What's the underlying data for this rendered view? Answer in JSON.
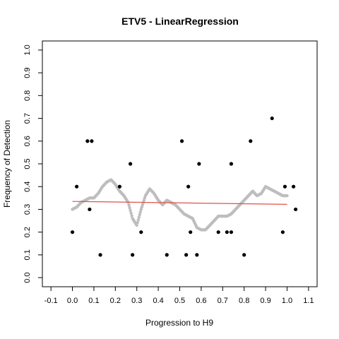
{
  "chart_data": {
    "type": "scatter",
    "title": "ETV5 - LinearRegression",
    "xlabel": "Progression to H9",
    "ylabel": "Frequency of Detection",
    "xlim": [
      -0.14,
      1.14
    ],
    "ylim": [
      -0.04,
      1.04
    ],
    "x_ticks": [
      -0.1,
      0.0,
      0.1,
      0.2,
      0.3,
      0.4,
      0.5,
      0.6,
      0.7,
      0.8,
      0.9,
      1.0,
      1.1
    ],
    "x_tick_labels": [
      "-0.1",
      "0.0",
      "0.1",
      "0.2",
      "0.3",
      "0.4",
      "0.5",
      "0.6",
      "0.7",
      "0.8",
      "0.9",
      "1.0",
      "1.1"
    ],
    "y_ticks": [
      0.0,
      0.1,
      0.2,
      0.3,
      0.4,
      0.5,
      0.6,
      0.7,
      0.8,
      0.9,
      1.0
    ],
    "y_tick_labels": [
      "0.0",
      "0.1",
      "0.2",
      "0.3",
      "0.4",
      "0.5",
      "0.6",
      "0.7",
      "0.8",
      "0.9",
      "1.0"
    ],
    "grid": false,
    "legend": "none",
    "colors": {
      "points": "#000000",
      "smooth": "#bebebe",
      "regression": "#e0524a"
    },
    "series": [
      {
        "kind": "points",
        "x": [
          0.0,
          0.02,
          0.07,
          0.08,
          0.09,
          0.13,
          0.22,
          0.27,
          0.28,
          0.32,
          0.44,
          0.51,
          0.53,
          0.54,
          0.55,
          0.58,
          0.59,
          0.68,
          0.72,
          0.74,
          0.74,
          0.8,
          0.83,
          0.93,
          0.98,
          0.99,
          1.03,
          1.04
        ],
        "y": [
          0.2,
          0.4,
          0.6,
          0.3,
          0.6,
          0.1,
          0.4,
          0.5,
          0.1,
          0.2,
          0.1,
          0.6,
          0.1,
          0.4,
          0.2,
          0.1,
          0.5,
          0.2,
          0.2,
          0.5,
          0.2,
          0.1,
          0.6,
          0.7,
          0.2,
          0.4,
          0.4,
          0.3
        ]
      },
      {
        "kind": "smooth",
        "x": [
          0.0,
          0.02,
          0.04,
          0.06,
          0.08,
          0.1,
          0.12,
          0.14,
          0.16,
          0.18,
          0.2,
          0.22,
          0.24,
          0.26,
          0.28,
          0.3,
          0.32,
          0.34,
          0.36,
          0.38,
          0.4,
          0.42,
          0.44,
          0.46,
          0.48,
          0.5,
          0.52,
          0.54,
          0.56,
          0.58,
          0.6,
          0.62,
          0.64,
          0.66,
          0.68,
          0.7,
          0.72,
          0.74,
          0.76,
          0.78,
          0.8,
          0.82,
          0.84,
          0.86,
          0.88,
          0.9,
          0.92,
          0.94,
          0.96,
          0.98,
          1.0
        ],
        "y": [
          0.3,
          0.31,
          0.33,
          0.34,
          0.35,
          0.35,
          0.37,
          0.4,
          0.42,
          0.43,
          0.41,
          0.38,
          0.36,
          0.33,
          0.26,
          0.23,
          0.3,
          0.36,
          0.39,
          0.37,
          0.34,
          0.32,
          0.34,
          0.33,
          0.32,
          0.3,
          0.28,
          0.27,
          0.26,
          0.22,
          0.21,
          0.21,
          0.23,
          0.25,
          0.27,
          0.27,
          0.27,
          0.28,
          0.3,
          0.32,
          0.34,
          0.36,
          0.38,
          0.36,
          0.37,
          0.4,
          0.39,
          0.38,
          0.37,
          0.36,
          0.36
        ]
      },
      {
        "kind": "regression",
        "x": [
          0.0,
          1.0
        ],
        "y": [
          0.335,
          0.322
        ]
      }
    ]
  }
}
